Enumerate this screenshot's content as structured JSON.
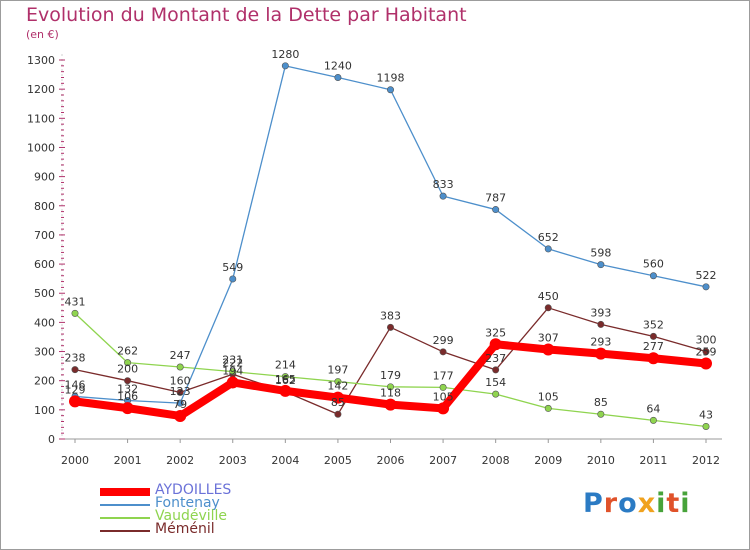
{
  "header": {
    "title": "Evolution du Montant de la Dette par Habitant",
    "subtitle": "(en €)"
  },
  "logo": {
    "text": "Proxiti",
    "letter_colors": [
      "#2b7bc4",
      "#e0522a",
      "#2b7bc4",
      "#f0a21e",
      "#47a33a",
      "#e0522a",
      "#47a33a"
    ]
  },
  "chart_data": {
    "type": "line",
    "title": "Evolution du Montant de la Dette par Habitant",
    "subtitle": "(en €)",
    "xlabel": "",
    "ylabel": "",
    "x": [
      2000,
      2001,
      2002,
      2003,
      2004,
      2005,
      2006,
      2007,
      2008,
      2009,
      2010,
      2011,
      2012
    ],
    "ylim": [
      0,
      1300
    ],
    "yticks": [
      0,
      100,
      200,
      300,
      400,
      500,
      600,
      700,
      800,
      900,
      1000,
      1100,
      1200,
      1300
    ],
    "grid": false,
    "legend_position": "bottom-left",
    "series": [
      {
        "name": "AYDOILLES",
        "color": "#ff0000",
        "values": [
          129,
          106,
          79,
          194,
          165,
          142,
          118,
          105,
          325,
          307,
          293,
          277,
          259
        ],
        "labels": [
          "129",
          "106",
          "79",
          "194",
          "165",
          "142",
          "118",
          "105",
          "325",
          "307",
          "293",
          "277",
          "259"
        ]
      },
      {
        "name": "Fontenay",
        "color": "#4d8fcb",
        "values": [
          146,
          132,
          123,
          549,
          1280,
          1240,
          1198,
          833,
          787,
          652,
          598,
          560,
          522
        ],
        "labels": [
          "146",
          "132",
          "123",
          "549",
          "1280",
          "1240",
          "1198",
          "833",
          "787",
          "652",
          "598",
          "560",
          "522"
        ]
      },
      {
        "name": "Vaudéville",
        "color": "#8fd44f",
        "values": [
          431,
          262,
          247,
          231,
          214,
          197,
          179,
          177,
          154,
          105,
          85,
          64,
          43
        ],
        "labels": [
          "431",
          "262",
          "247",
          "231",
          "214",
          "197",
          "179",
          "177",
          "154",
          "105",
          "85",
          "64",
          "43"
        ]
      },
      {
        "name": "Méménil",
        "color": "#7a2b2b",
        "values": [
          238,
          200,
          160,
          222,
          162,
          85,
          383,
          299,
          237,
          450,
          393,
          352,
          300
        ],
        "labels": [
          "238",
          "200",
          "160",
          "222",
          "162",
          "85",
          "383",
          "299",
          "237",
          "450",
          "393",
          "352",
          "300"
        ]
      }
    ]
  }
}
